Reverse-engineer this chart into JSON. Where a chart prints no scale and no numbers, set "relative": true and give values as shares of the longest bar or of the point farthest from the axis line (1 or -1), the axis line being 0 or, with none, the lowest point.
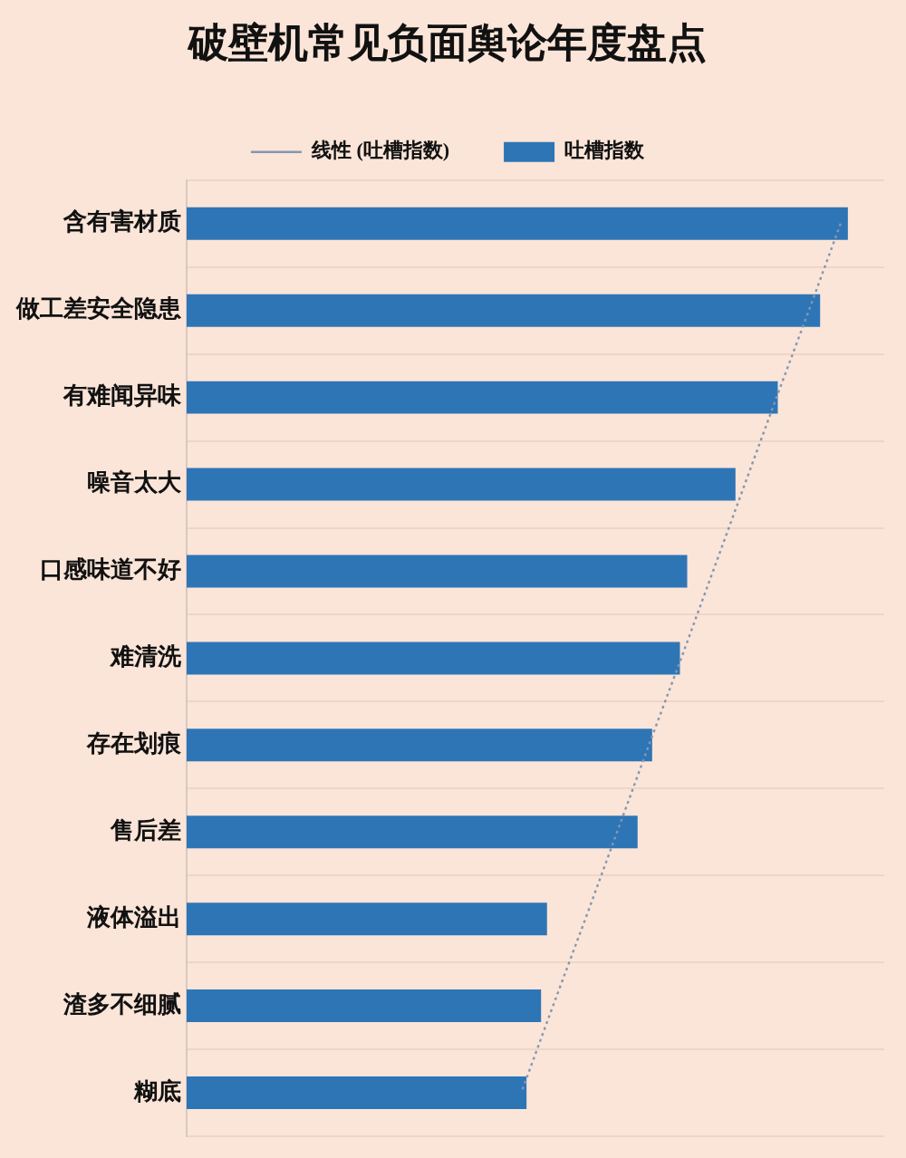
{
  "chart_data": {
    "type": "bar",
    "orientation": "horizontal",
    "relative": true,
    "title": "破壁机常见负面舆论年度盘点",
    "categories": [
      "含有害材质",
      "做工差安全隐患",
      "有难闻异味",
      "噪音太大",
      "口感味道不好",
      "难清洗",
      "存在划痕",
      "售后差",
      "液体溢出",
      "渣多不细腻",
      "糊底"
    ],
    "series": [
      {
        "name": "吐槽指数",
        "color": "#2e75b6",
        "values": [
          1,
          0.958,
          0.894,
          0.83,
          0.757,
          0.746,
          0.704,
          0.682,
          0.545,
          0.536,
          0.514
        ]
      },
      {
        "name": "线性 (吐槽指数)",
        "type": "line",
        "color": "#8497b0",
        "line_style": "dotted",
        "marker": "none",
        "values": [
          0.989,
          0.941,
          0.892,
          0.844,
          0.796,
          0.748,
          0.699,
          0.651,
          0.603,
          0.554,
          0.506
        ]
      }
    ],
    "grid": "y",
    "legend": "top"
  }
}
